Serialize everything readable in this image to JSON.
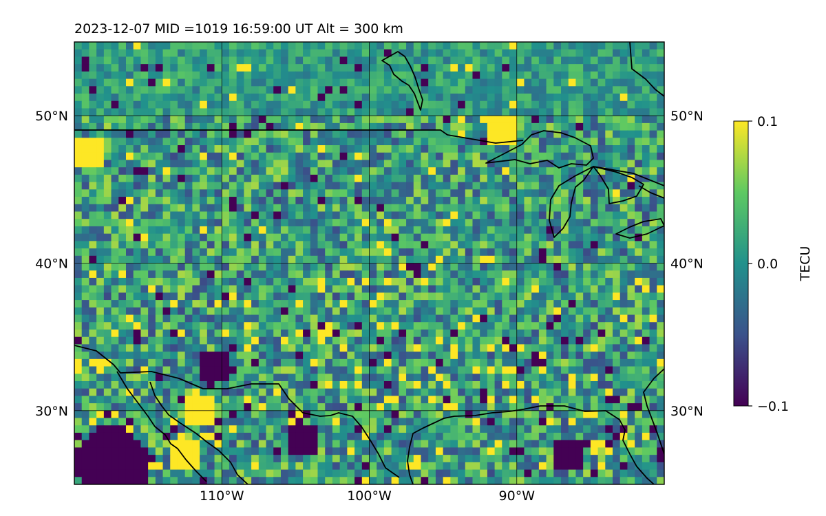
{
  "chart_data": {
    "type": "heatmap",
    "title": "2023-12-07  MID =1019    16:59:00  UT  Alt = 300 km",
    "x_ticks": [
      "110°W",
      "100°W",
      "90°W"
    ],
    "x_tick_values": [
      -110,
      -100,
      -90
    ],
    "y_ticks_left": [
      "50°N",
      "40°N",
      "30°N"
    ],
    "y_ticks_right": [
      "50°N",
      "40°N",
      "30°N"
    ],
    "y_tick_values": [
      50,
      40,
      30
    ],
    "xlim": [
      -120,
      -80
    ],
    "ylim": [
      25,
      55
    ],
    "grid": true,
    "colorbar": {
      "label": "TECU",
      "ticks": [
        "0.1",
        "0.0",
        "−0.1"
      ],
      "tick_values": [
        0.1,
        0.0,
        -0.1
      ],
      "range": [
        -0.1,
        0.1
      ],
      "colormap": "viridis",
      "colors": [
        "#440154",
        "#3b528b",
        "#21918c",
        "#5ec962",
        "#fde725"
      ]
    },
    "grid_resolution_deg": 0.5,
    "background_value": 0.01,
    "features": [
      {
        "kind": "strong negative anomaly",
        "lon": -117.5,
        "lat": 26.5,
        "value": -0.1
      },
      {
        "kind": "negative anomaly",
        "lon": -110.5,
        "lat": 33.0,
        "value": -0.1
      },
      {
        "kind": "negative anomaly",
        "lon": -104.5,
        "lat": 28.0,
        "value": -0.1
      },
      {
        "kind": "negative anomaly",
        "lon": -86.5,
        "lat": 27.0,
        "value": -0.1
      },
      {
        "kind": "positive anomaly",
        "lon": -112.5,
        "lat": 27.0,
        "value": 0.1
      },
      {
        "kind": "positive anomaly",
        "lon": -111.5,
        "lat": 30.0,
        "value": 0.1
      },
      {
        "kind": "positive anomaly",
        "lon": -91.0,
        "lat": 49.0,
        "value": 0.1
      },
      {
        "kind": "positive anomaly",
        "lon": -119.0,
        "lat": 47.5,
        "value": 0.1
      }
    ]
  }
}
